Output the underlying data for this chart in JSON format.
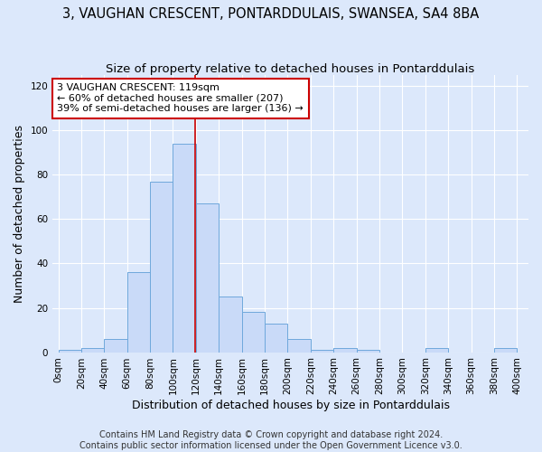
{
  "title": "3, VAUGHAN CRESCENT, PONTARDDULAIS, SWANSEA, SA4 8BA",
  "subtitle": "Size of property relative to detached houses in Pontarddulais",
  "xlabel": "Distribution of detached houses by size in Pontarddulais",
  "ylabel": "Number of detached properties",
  "footnote1": "Contains HM Land Registry data © Crown copyright and database right 2024.",
  "footnote2": "Contains public sector information licensed under the Open Government Licence v3.0.",
  "bin_labels": [
    "0sqm",
    "20sqm",
    "40sqm",
    "60sqm",
    "80sqm",
    "100sqm",
    "120sqm",
    "140sqm",
    "160sqm",
    "180sqm",
    "200sqm",
    "220sqm",
    "240sqm",
    "260sqm",
    "280sqm",
    "300sqm",
    "320sqm",
    "340sqm",
    "360sqm",
    "380sqm",
    "400sqm"
  ],
  "bins_left": [
    0,
    20,
    40,
    60,
    80,
    100,
    120,
    140,
    160,
    180,
    200,
    220,
    240,
    260,
    280,
    300,
    320,
    340,
    360,
    380
  ],
  "heights": [
    1,
    2,
    6,
    36,
    77,
    94,
    67,
    25,
    18,
    13,
    6,
    1,
    2,
    1,
    0,
    0,
    2,
    0,
    0,
    2
  ],
  "bar_color": "#c9daf8",
  "bar_edge_color": "#6fa8dc",
  "vline_x": 119,
  "vline_color": "#cc0000",
  "annotation_line1": "3 VAUGHAN CRESCENT: 119sqm",
  "annotation_line2": "← 60% of detached houses are smaller (207)",
  "annotation_line3": "39% of semi-detached houses are larger (136) →",
  "annotation_box_color": "#ffffff",
  "annotation_box_edge": "#cc0000",
  "ylim": [
    0,
    125
  ],
  "yticks": [
    0,
    20,
    40,
    60,
    80,
    100,
    120
  ],
  "xlim": [
    -5,
    410
  ],
  "background_color": "#dce8fb",
  "grid_color": "#ffffff",
  "title_fontsize": 10.5,
  "subtitle_fontsize": 9.5,
  "ylabel_fontsize": 9,
  "xlabel_fontsize": 9,
  "tick_fontsize": 7.5,
  "annotation_fontsize": 8,
  "footnote_fontsize": 7
}
